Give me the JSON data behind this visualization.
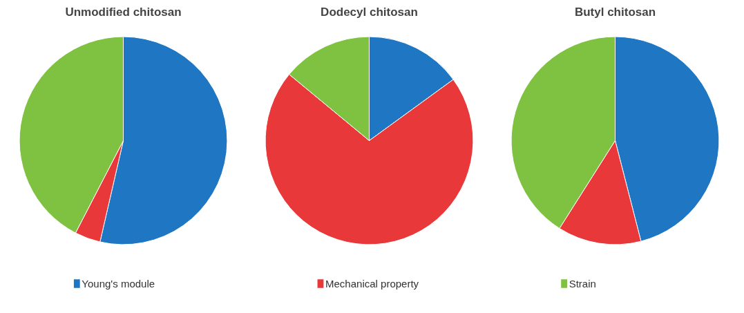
{
  "chart_data": [
    {
      "type": "pie",
      "title": "Unmodified chitosan",
      "categories": [
        "Young's module",
        "Mechanical property",
        "Strain"
      ],
      "values": [
        53.6,
        4,
        42.4
      ],
      "colors": [
        "#1f77c4",
        "#e8383a",
        "#7fc241"
      ],
      "legend": "bottom"
    },
    {
      "type": "pie",
      "title": "Dodecyl chitosan",
      "categories": [
        null,
        null,
        null
      ],
      "values": [
        15,
        71,
        14
      ],
      "colors": [
        "#1f77c4",
        "#e8383a",
        "#7fc241"
      ]
    },
    {
      "type": "pie",
      "title": "Butyl chitosan",
      "categories": [
        null,
        null,
        null
      ],
      "values": [
        46,
        13,
        41
      ],
      "colors": [
        "#1f77c4",
        "#e8383a",
        "#7fc241"
      ]
    }
  ]
}
